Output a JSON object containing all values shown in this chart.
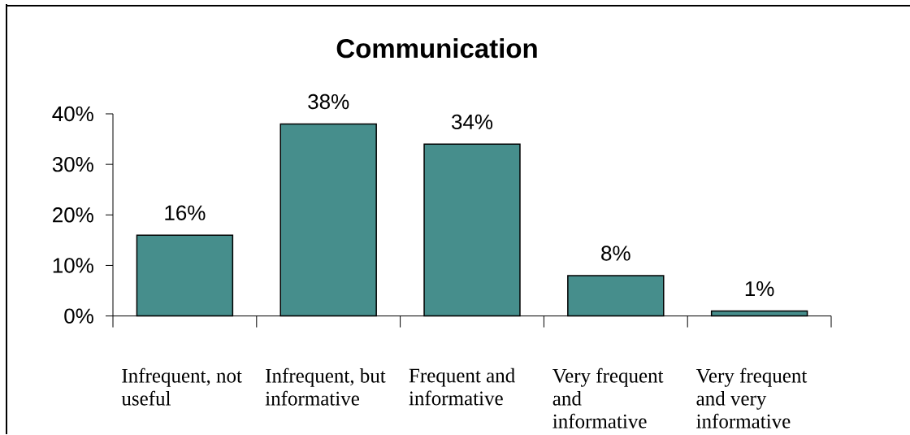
{
  "chart_data": {
    "type": "bar",
    "title": "Communication",
    "categories": [
      "Infrequent, not useful",
      "Infrequent, but informative",
      "Frequent and informative",
      "Very frequent and informative",
      "Very frequent and very informative"
    ],
    "values": [
      16,
      38,
      34,
      8,
      1
    ],
    "color": "#468e8c",
    "value_labels": [
      "16%",
      "38%",
      "34%",
      "8%",
      "1%"
    ],
    "ylim": [
      0,
      40
    ],
    "yticks": [
      {
        "value": 0,
        "label": "0%"
      },
      {
        "value": 10,
        "label": "10%"
      },
      {
        "value": 20,
        "label": "20%"
      },
      {
        "value": 30,
        "label": "30%"
      },
      {
        "value": 40,
        "label": "40%"
      }
    ]
  }
}
